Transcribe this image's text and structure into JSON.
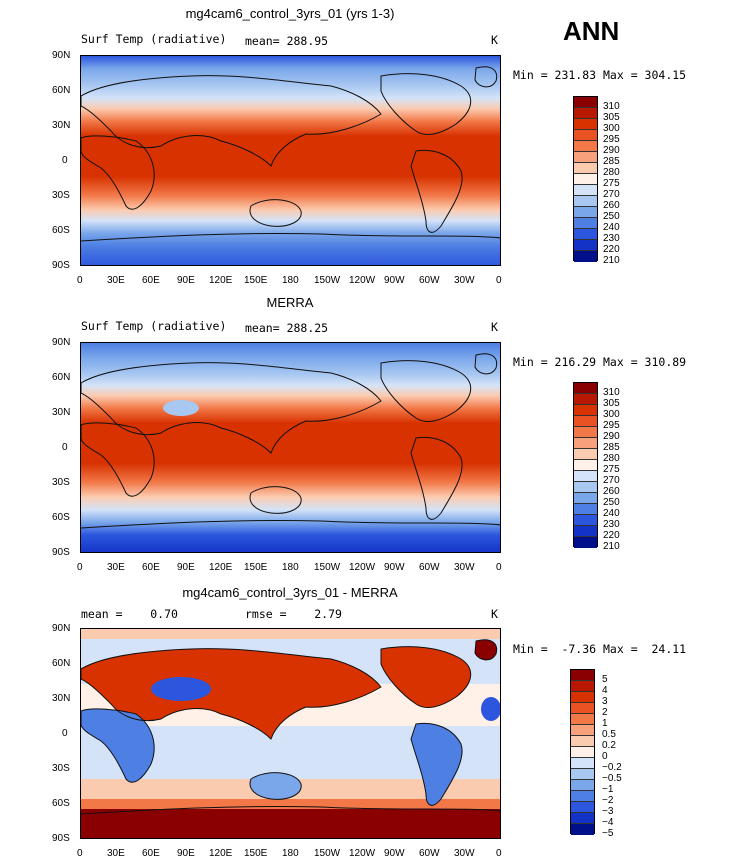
{
  "chart_data": [
    {
      "type": "heatmap",
      "title": "mg4cam6_control_3yrs_01 (yrs 1-3)",
      "variable": "Surf Temp (radiative)",
      "mean_label": "mean=",
      "mean": "288.95",
      "units": "K",
      "minmax": "Min = 231.83 Max = 304.15",
      "colorbar": {
        "levels": [
          "310",
          "305",
          "300",
          "295",
          "290",
          "285",
          "280",
          "275",
          "270",
          "260",
          "250",
          "240",
          "230",
          "220",
          "210"
        ],
        "colors": [
          "#8a0000",
          "#b81800",
          "#d73200",
          "#ea5222",
          "#f27848",
          "#f7a07c",
          "#fbcbb0",
          "#fff0e8",
          "#d4e3f8",
          "#a9c8f1",
          "#7aa6ea",
          "#4e7fe3",
          "#2c56dd",
          "#1332c6",
          "#00108a"
        ]
      },
      "lat_ticks": [
        "90N",
        "60N",
        "30N",
        "0",
        "30S",
        "60S",
        "90S"
      ],
      "lon_ticks": [
        "0",
        "30E",
        "60E",
        "90E",
        "120E",
        "150E",
        "180",
        "150W",
        "120W",
        "90W",
        "60W",
        "30W",
        "0"
      ]
    },
    {
      "type": "heatmap",
      "title": "MERRA",
      "variable": "Surf Temp (radiative)",
      "mean_label": "mean=",
      "mean": "288.25",
      "units": "K",
      "minmax": "Min = 216.29 Max = 310.89",
      "colorbar": {
        "levels": [
          "310",
          "305",
          "300",
          "295",
          "290",
          "285",
          "280",
          "275",
          "270",
          "260",
          "250",
          "240",
          "230",
          "220",
          "210"
        ],
        "colors": [
          "#8a0000",
          "#b81800",
          "#d73200",
          "#ea5222",
          "#f27848",
          "#f7a07c",
          "#fbcbb0",
          "#fff0e8",
          "#d4e3f8",
          "#a9c8f1",
          "#7aa6ea",
          "#4e7fe3",
          "#2c56dd",
          "#1332c6",
          "#00108a"
        ]
      },
      "lat_ticks": [
        "90N",
        "60N",
        "30N",
        "0",
        "30S",
        "60S",
        "90S"
      ],
      "lon_ticks": [
        "0",
        "30E",
        "60E",
        "90E",
        "120E",
        "150E",
        "180",
        "150W",
        "120W",
        "90W",
        "60W",
        "30W",
        "0"
      ]
    },
    {
      "type": "heatmap",
      "title": "mg4cam6_control_3yrs_01 - MERRA",
      "mean_label": "mean =",
      "mean": "0.70",
      "rmse_label": "rmse =",
      "rmse": "2.79",
      "units": "K",
      "minmax": "Min =  -7.36 Max =  24.11",
      "colorbar": {
        "levels": [
          "5",
          "4",
          "3",
          "2",
          "1",
          "0.5",
          "0.2",
          "0",
          "−0.2",
          "−0.5",
          "−1",
          "−2",
          "−3",
          "−4",
          "−5"
        ],
        "colors": [
          "#8a0000",
          "#b81800",
          "#d73200",
          "#ea5222",
          "#f27848",
          "#f7a07c",
          "#fbcbb0",
          "#fff0e8",
          "#d4e3f8",
          "#a9c8f1",
          "#7aa6ea",
          "#4e7fe3",
          "#2c56dd",
          "#1332c6",
          "#00108a"
        ]
      },
      "lat_ticks": [
        "90N",
        "60N",
        "30N",
        "0",
        "30S",
        "60S",
        "90S"
      ],
      "lon_ticks": [
        "0",
        "30E",
        "60E",
        "90E",
        "120E",
        "150E",
        "180",
        "150W",
        "120W",
        "90W",
        "60W",
        "30W",
        "0"
      ]
    }
  ],
  "season": "ANN"
}
